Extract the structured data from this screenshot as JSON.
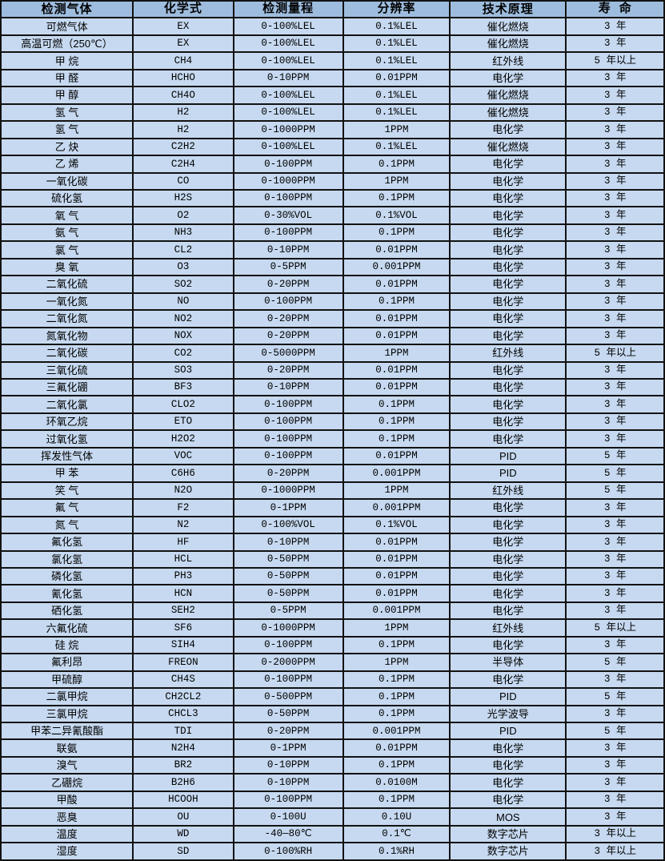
{
  "colors": {
    "header_bg": "#9EBDDE",
    "row_bg": "#C6D9F0",
    "border": "#121212",
    "text": "#000000"
  },
  "table": {
    "headers": [
      "检测气体",
      "化学式",
      "检测量程",
      "分辨率",
      "技术原理",
      "寿 命"
    ],
    "rows": [
      [
        "可燃气体",
        "EX",
        "0-100%LEL",
        "0.1%LEL",
        "催化燃烧",
        "3 年"
      ],
      [
        "高温可燃（250℃）",
        "EX",
        "0-100%LEL",
        "0.1%LEL",
        "催化燃烧",
        "3 年"
      ],
      [
        "甲 烷",
        "CH4",
        "0-100%LEL",
        "0.1%LEL",
        "红外线",
        "5 年以上"
      ],
      [
        "甲 醛",
        "HCHO",
        "0-10PPM",
        "0.01PPM",
        "电化学",
        "3 年"
      ],
      [
        "甲 醇",
        "CH4O",
        "0-100%LEL",
        "0.1%LEL",
        "催化燃烧",
        "3 年"
      ],
      [
        "氢 气",
        "H2",
        "0-100%LEL",
        "0.1%LEL",
        "催化燃烧",
        "3 年"
      ],
      [
        "氢 气",
        "H2",
        "0-1000PPM",
        "1PPM",
        "电化学",
        "3 年"
      ],
      [
        "乙 炔",
        "C2H2",
        "0-100%LEL",
        "0.1%LEL",
        "催化燃烧",
        "3 年"
      ],
      [
        "乙 烯",
        "C2H4",
        "0-100PPM",
        "0.1PPM",
        "电化学",
        "3 年"
      ],
      [
        "一氧化碳",
        "CO",
        "0-1000PPM",
        "1PPM",
        "电化学",
        "3 年"
      ],
      [
        "硫化氢",
        "H2S",
        "0-100PPM",
        "0.1PPM",
        "电化学",
        "3 年"
      ],
      [
        "氧 气",
        "O2",
        "0-30%VOL",
        "0.1%VOL",
        "电化学",
        "3 年"
      ],
      [
        "氨 气",
        "NH3",
        "0-100PPM",
        "0.1PPM",
        "电化学",
        "3 年"
      ],
      [
        "氯 气",
        "CL2",
        "0-10PPM",
        "0.01PPM",
        "电化学",
        "3 年"
      ],
      [
        "臭 氧",
        "O3",
        "0-5PPM",
        "0.001PPM",
        "电化学",
        "3 年"
      ],
      [
        "二氧化硫",
        "SO2",
        "0-20PPM",
        "0.01PPM",
        "电化学",
        "3 年"
      ],
      [
        "一氧化氮",
        "NO",
        "0-100PPM",
        "0.1PPM",
        "电化学",
        "3 年"
      ],
      [
        "二氧化氮",
        "NO2",
        "0-20PPM",
        "0.01PPM",
        "电化学",
        "3 年"
      ],
      [
        "氮氧化物",
        "NOX",
        "0-20PPM",
        "0.01PPM",
        "电化学",
        "3 年"
      ],
      [
        "二氧化碳",
        "CO2",
        "0-5000PPM",
        "1PPM",
        "红外线",
        "5 年以上"
      ],
      [
        "三氧化硫",
        "SO3",
        "0-20PPM",
        "0.01PPM",
        "电化学",
        "3 年"
      ],
      [
        "三氟化硼",
        "BF3",
        "0-10PPM",
        "0.01PPM",
        "电化学",
        "3 年"
      ],
      [
        "二氧化氯",
        "CLO2",
        "0-100PPM",
        "0.1PPM",
        "电化学",
        "3 年"
      ],
      [
        "环氧乙烷",
        "ETO",
        "0-100PPM",
        "0.1PPM",
        "电化学",
        "3 年"
      ],
      [
        "过氧化氢",
        "H2O2",
        "0-100PPM",
        "0.1PPM",
        "电化学",
        "3 年"
      ],
      [
        "挥发性气体",
        "VOC",
        "0-100PPM",
        "0.01PPM",
        "PID",
        "5 年"
      ],
      [
        "甲 苯",
        "C6H6",
        "0-20PPM",
        "0.001PPM",
        "PID",
        "5 年"
      ],
      [
        "笑 气",
        "N2O",
        "0-1000PPM",
        "1PPM",
        "红外线",
        "5 年"
      ],
      [
        "氟 气",
        "F2",
        "0-1PPM",
        "0.001PPM",
        "电化学",
        "3 年"
      ],
      [
        "氮 气",
        "N2",
        "0-100%VOL",
        "0.1%VOL",
        "电化学",
        "3 年"
      ],
      [
        "氟化氢",
        "HF",
        "0-10PPM",
        "0.01PPM",
        "电化学",
        "3 年"
      ],
      [
        "氯化氢",
        "HCL",
        "0-50PPM",
        "0.01PPM",
        "电化学",
        "3 年"
      ],
      [
        "磷化氢",
        "PH3",
        "0-50PPM",
        "0.01PPM",
        "电化学",
        "3 年"
      ],
      [
        "氰化氢",
        "HCN",
        "0-50PPM",
        "0.01PPM",
        "电化学",
        "3 年"
      ],
      [
        "硒化氢",
        "SEH2",
        "0-5PPM",
        "0.001PPM",
        "电化学",
        "3 年"
      ],
      [
        "六氟化硫",
        "SF6",
        "0-1000PPM",
        "1PPM",
        "红外线",
        "5 年以上"
      ],
      [
        "硅 烷",
        "SIH4",
        "0-100PPM",
        "0.1PPM",
        "电化学",
        "3 年"
      ],
      [
        "氟利昂",
        "FREON",
        "0-2000PPM",
        "1PPM",
        "半导体",
        "5 年"
      ],
      [
        "甲硫醇",
        "CH4S",
        "0-100PPM",
        "0.1PPM",
        "电化学",
        "3 年"
      ],
      [
        "二氯甲烷",
        "CH2CL2",
        "0-500PPM",
        "0.1PPM",
        "PID",
        "5 年"
      ],
      [
        "三氯甲烷",
        "CHCL3",
        "0-50PPM",
        "0.1PPM",
        "光学波导",
        "3 年"
      ],
      [
        "甲苯二异氰酸酯",
        "TDI",
        "0-20PPM",
        "0.001PPM",
        "PID",
        "5 年"
      ],
      [
        "联氨",
        "N2H4",
        "0-1PPM",
        "0.01PPM",
        "电化学",
        "3 年"
      ],
      [
        "溴气",
        "BR2",
        "0-10PPM",
        "0.1PPM",
        "电化学",
        "3 年"
      ],
      [
        "乙硼烷",
        "B2H6",
        "0-10PPM",
        "0.0100M",
        "电化学",
        "3 年"
      ],
      [
        "甲酸",
        "HCOOH",
        "0-100PPM",
        "0.1PPM",
        "电化学",
        "3 年"
      ],
      [
        "恶臭",
        "OU",
        "0-100U",
        "0.10U",
        "MOS",
        "3 年"
      ],
      [
        "温度",
        "WD",
        "-40—80℃",
        "0.1℃",
        "数字芯片",
        "3 年以上"
      ],
      [
        "湿度",
        "SD",
        "0-100%RH",
        "0.1%RH",
        "数字芯片",
        "3 年以上"
      ]
    ]
  }
}
